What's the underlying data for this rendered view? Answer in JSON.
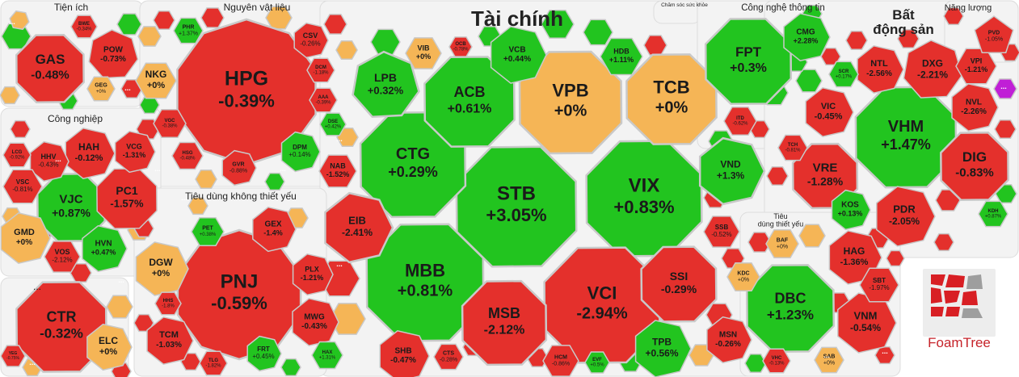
{
  "chart_data": {
    "type": "treemap",
    "colors": {
      "up": "#22c41f",
      "down": "#e4302c",
      "flat": "#f5b556",
      "ceiling": "#c01fd6",
      "cell_border": "#c9c9c9",
      "group_bg": "#ffffff"
    },
    "groups": [
      {
        "name": "Tiện ích",
        "stocks": [
          {
            "code": "GAS",
            "change": "-0.48%"
          },
          {
            "code": "POW",
            "change": "-0.73%"
          },
          {
            "code": "BWE",
            "change": "-0.34%"
          },
          {
            "code": "GEG",
            "change": "+0%"
          }
        ]
      },
      {
        "name": "Nguyên vật liệu",
        "stocks": [
          {
            "code": "HPG",
            "change": "-0.39%"
          },
          {
            "code": "NKG",
            "change": "+0%"
          },
          {
            "code": "PHR",
            "change": "+1.37%"
          },
          {
            "code": "CSV",
            "change": "-0.26%"
          },
          {
            "code": "DCM",
            "change": "-1.18%"
          },
          {
            "code": "AAA",
            "change": "-0.39%"
          },
          {
            "code": "VGC",
            "change": "-0.38%"
          },
          {
            "code": "HSG",
            "change": "-0.48%"
          },
          {
            "code": "GVR",
            "change": "-0.88%"
          },
          {
            "code": "DPM",
            "change": "+0.14%"
          }
        ]
      },
      {
        "name": "Tài chính",
        "stocks": [
          {
            "code": "STB",
            "change": "+3.05%"
          },
          {
            "code": "VIX",
            "change": "+0.83%"
          },
          {
            "code": "CTG",
            "change": "+0.29%"
          },
          {
            "code": "MBB",
            "change": "+0.81%"
          },
          {
            "code": "VCI",
            "change": "-2.94%"
          },
          {
            "code": "VPB",
            "change": "+0%"
          },
          {
            "code": "TCB",
            "change": "+0%"
          },
          {
            "code": "ACB",
            "change": "+0.61%"
          },
          {
            "code": "MSB",
            "change": "-2.12%"
          },
          {
            "code": "LPB",
            "change": "+0.32%"
          },
          {
            "code": "SSI",
            "change": "-0.29%"
          },
          {
            "code": "EIB",
            "change": "-2.41%"
          },
          {
            "code": "VND",
            "change": "+1.3%"
          },
          {
            "code": "TPB",
            "change": "+0.56%"
          },
          {
            "code": "VCB",
            "change": "+0.44%"
          },
          {
            "code": "HDB",
            "change": "+1.11%"
          },
          {
            "code": "VIB",
            "change": "+0%"
          },
          {
            "code": "OCB",
            "change": "-0.78%"
          },
          {
            "code": "NAB",
            "change": "-1.52%"
          },
          {
            "code": "SHB",
            "change": "-0.47%"
          },
          {
            "code": "SSB",
            "change": "-0.52%"
          },
          {
            "code": "HCM",
            "change": "-0.86%"
          },
          {
            "code": "CTS",
            "change": "-0.28%"
          },
          {
            "code": "DSE",
            "change": "+0.42%"
          },
          {
            "code": "EVF",
            "change": "+0.5%"
          }
        ]
      },
      {
        "name": "Chăm sóc sức khỏe",
        "stocks": []
      },
      {
        "name": "Công nghệ thông tin",
        "stocks": [
          {
            "code": "FPT",
            "change": "+0.3%"
          },
          {
            "code": "CMG",
            "change": "+2.28%"
          },
          {
            "code": "ITD",
            "change": "-0.62%"
          }
        ]
      },
      {
        "name": "Bất động sản",
        "stocks": [
          {
            "code": "VHM",
            "change": "+1.47%"
          },
          {
            "code": "DIG",
            "change": "-0.83%"
          },
          {
            "code": "VRE",
            "change": "-1.28%"
          },
          {
            "code": "PDR",
            "change": "-2.05%"
          },
          {
            "code": "DXG",
            "change": "-2.21%"
          },
          {
            "code": "NTL",
            "change": "-2.56%"
          },
          {
            "code": "VIC",
            "change": "-0.45%"
          },
          {
            "code": "NVL",
            "change": "-2.26%"
          },
          {
            "code": "VPI",
            "change": "-1.21%"
          },
          {
            "code": "KOS",
            "change": "+0.13%"
          },
          {
            "code": "SCR",
            "change": "+0.17%"
          },
          {
            "code": "TCH",
            "change": "-0.81%"
          },
          {
            "code": "KDH",
            "change": "+0.87%"
          }
        ]
      },
      {
        "name": "Năng lượng",
        "stocks": [
          {
            "code": "PVD",
            "change": "-1.05%"
          }
        ]
      },
      {
        "name": "Công nghiệp",
        "stocks": [
          {
            "code": "VJC",
            "change": "+0.87%"
          },
          {
            "code": "PC1",
            "change": "-1.57%"
          },
          {
            "code": "HAH",
            "change": "-0.12%"
          },
          {
            "code": "HVN",
            "change": "+0.47%"
          },
          {
            "code": "GMD",
            "change": "+0%"
          },
          {
            "code": "VOS",
            "change": "-2.12%"
          },
          {
            "code": "HHV",
            "change": "-0.43%"
          },
          {
            "code": "VCG",
            "change": "-1.31%"
          },
          {
            "code": "VSC",
            "change": "-0.81%"
          },
          {
            "code": "LCG",
            "change": "-0.92%"
          }
        ]
      },
      {
        "name": "Tiêu dùng không thiết yếu",
        "stocks": [
          {
            "code": "PNJ",
            "change": "-0.59%"
          },
          {
            "code": "DGW",
            "change": "+0%"
          },
          {
            "code": "GEX",
            "change": "-1.4%"
          },
          {
            "code": "MWG",
            "change": "-0.43%"
          },
          {
            "code": "PLX",
            "change": "-1.21%"
          },
          {
            "code": "TCM",
            "change": "-1.03%"
          },
          {
            "code": "FRT",
            "change": "+0.45%"
          },
          {
            "code": "PET",
            "change": "+0.38%"
          },
          {
            "code": "HHS",
            "change": "-1.8%"
          },
          {
            "code": "TLG",
            "change": "-1.82%"
          },
          {
            "code": "HAX",
            "change": "+1.31%"
          }
        ]
      },
      {
        "name": "Tiêu dùng thiết yếu",
        "stocks": [
          {
            "code": "DBC",
            "change": "+1.23%"
          },
          {
            "code": "VNM",
            "change": "-0.54%"
          },
          {
            "code": "HAG",
            "change": "-1.36%"
          },
          {
            "code": "SBT",
            "change": "-1.97%"
          },
          {
            "code": "MSN",
            "change": "-0.26%"
          },
          {
            "code": "BAF",
            "change": "+0%"
          },
          {
            "code": "KDC",
            "change": "+0%"
          },
          {
            "code": "SAB",
            "change": "+0%"
          },
          {
            "code": "VHC",
            "change": "-0.13%"
          }
        ]
      },
      {
        "name": "...",
        "stocks": [
          {
            "code": "CTR",
            "change": "-0.32%"
          },
          {
            "code": "ELC",
            "change": "+0%"
          },
          {
            "code": "YEG",
            "change": "-0.75%"
          }
        ]
      }
    ],
    "more_label": "...",
    "watermark": "FoamTree"
  }
}
